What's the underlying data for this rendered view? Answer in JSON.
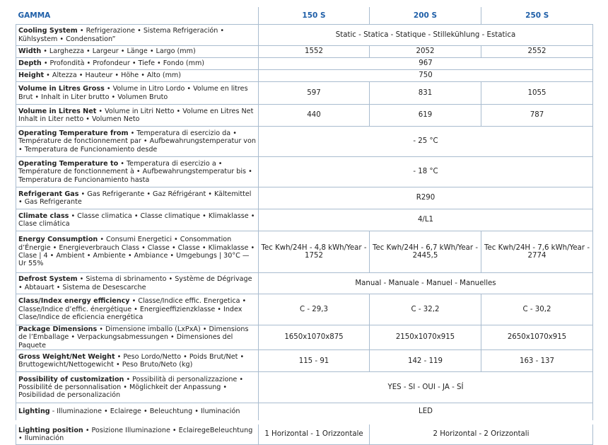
{
  "header": {
    "title": "GAMMA",
    "models": [
      "150 S",
      "200 S",
      "250 S"
    ]
  },
  "table": {
    "rows": [
      {
        "label": "Cooling System",
        "desc": "• Refrigerazione • Sistema Refrigeración • Kühlsystem • Condensation”",
        "cells": [
          "Static - Statica - Statique - Stillekühlung - Estatica"
        ]
      },
      {
        "label": "Width",
        "desc": "• Larghezza • Largeur • Länge • Largo (mm)",
        "cells": [
          "1552",
          "2052",
          "2552"
        ]
      },
      {
        "label": "Depth",
        "desc": "• Profondità • Profondeur • Tiefe • Fondo (mm)",
        "cells": [
          "967"
        ]
      },
      {
        "label": "Height",
        "desc": "• Altezza • Hauteur • Höhe • Alto (mm)",
        "cells": [
          "750"
        ]
      },
      {
        "label": "Volume in Litres Gross",
        "desc": "• Volume in Litro Lordo • Volume en litres Brut • Inhalt in Liter brutto • Volumen Bruto",
        "cells": [
          "597",
          "831",
          "1055"
        ]
      },
      {
        "label": "Volume in Litres Net",
        "desc": "• Volume in Litri Netto • Volume en Litres Net Inhalt in Liter netto • Volumen Neto",
        "cells": [
          "440",
          "619",
          "787"
        ]
      },
      {
        "label": "Operating Temperature from",
        "desc": "• Temperatura di esercizio da • Température de fonctionnement par • Aufbewahrungstemperatur von • Temperatura de Funcionamiento desde",
        "cells": [
          "- 25 °C"
        ]
      },
      {
        "label": "Operating Temperature to",
        "desc": "• Temperatura di esercizio a • Température de fonctionnement à • Aufbewahrungstemperatur bis • Temperatura de Funcionamiento hasta",
        "cells": [
          "- 18 °C"
        ]
      },
      {
        "label": "Refrigerant Gas",
        "desc": "• Gas Refrigerante • Gaz Réfrigérant • Kältemittel • Gas Refrigerante",
        "cells": [
          "R290"
        ]
      },
      {
        "label": "Climate class",
        "desc": "• Classe climatica • Classe climatique • Klimaklasse • Clase climática",
        "cells": [
          "4/L1"
        ]
      },
      {
        "label": "Energy Consumption",
        "desc": "• Consumi Energetici • Consommation d’Énergie • Energieverbrauch Class • Classe • Classe • Klimaklasse • Clase | 4 • Ambient • Ambiente • Ambiance • Umgebungs | 30°C — Ur 55%",
        "cells": [
          "Tec Kwh/24H - 4,8 kWh/Year - 1752",
          "Tec Kwh/24H - 6,7 kWh/Year - 2445,5",
          "Tec Kwh/24H - 7,6 kWh/Year - 2774"
        ]
      },
      {
        "label": "Defrost System",
        "desc": "• Sistema di sbrinamento • Système de Dégrivage • Abtauart • Sistema de Desescarche",
        "cells": [
          "Manual - Manuale - Manuel - Manuelles"
        ]
      },
      {
        "label": "Class/Index energy efficiency",
        "desc": "• Classe/Indice effic. Energetica • Classe/Indice d’effic. énergétique • Energieeffizienzklasse • Index Clase/Indice de eficiencia energética",
        "cells": [
          "C - 29,3",
          "C - 32,2",
          "C - 30,2"
        ]
      },
      {
        "label": "Package Dimensions",
        "desc": "• Dimensione imballo (LxPxA) • Dimensions de l’Emballage • Verpackungsabmessungen • Dimensiones del Paquete",
        "cells": [
          "1650x1070x875",
          "2150x1070x915",
          "2650x1070x915"
        ]
      },
      {
        "label": "Gross Weight/Net Weight",
        "desc": "• Peso Lordo/Netto • Poids Brut/Net • Bruttogewicht/Nettogewicht • Peso Bruto/Neto (kg)",
        "cells": [
          "115 - 91",
          "142 - 119",
          "163 - 137"
        ]
      },
      {
        "label": "Possibility of customization",
        "desc": "• Possibilità di personalizzazione • Possibilité de personnalisation • Möglichkeit der Anpassung • Posibilidad de personalización",
        "cells": [
          "YES - SI - OUI - JA - SÍ"
        ]
      },
      {
        "label": "Lighting",
        "desc": "- Illuminazione • Eclairege • Beleuchtung • Iluminación",
        "cells": [
          "LED"
        ]
      },
      {
        "label": "Lighting position",
        "desc": "• Posizione Illuminazione • EclairegeBeleuchtung • Iluminación",
        "cells": [
          "1 Horizontal - 1 Orizzontale",
          "2 Horizontal - 2 Orizzontali"
        ]
      }
    ]
  }
}
